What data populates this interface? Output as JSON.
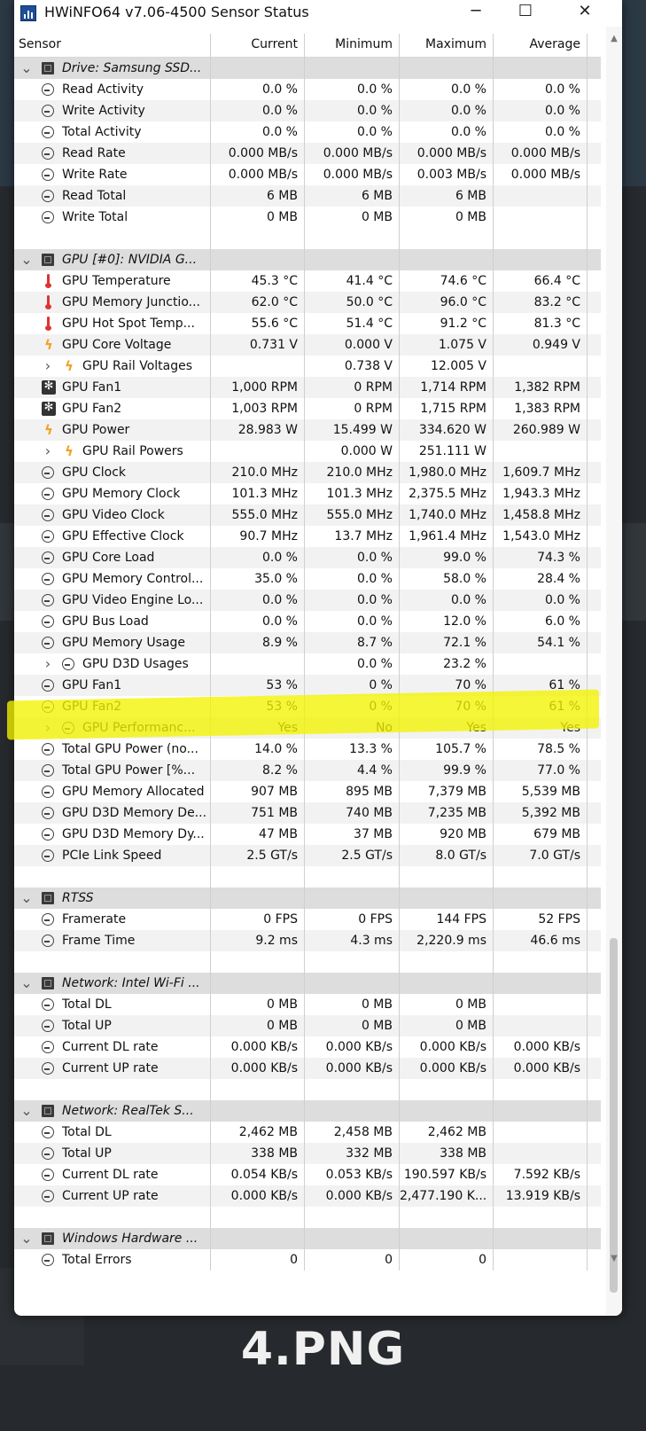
{
  "window": {
    "title": "HWiNFO64 v7.06-4500 Sensor Status",
    "minimize": "─",
    "maximize": "☐",
    "close": "✕"
  },
  "columns": {
    "sensor": "Sensor",
    "current": "Current",
    "minimum": "Minimum",
    "maximum": "Maximum",
    "average": "Average"
  },
  "rows": [
    {
      "type": "group",
      "icon": "drive-icon",
      "label": "Drive: Samsung SSD..."
    },
    {
      "type": "row",
      "icon": "clock",
      "label": "Read Activity",
      "cur": "0.0 %",
      "min": "0.0 %",
      "max": "0.0 %",
      "avg": "0.0 %"
    },
    {
      "type": "row",
      "icon": "clock",
      "label": "Write Activity",
      "cur": "0.0 %",
      "min": "0.0 %",
      "max": "0.0 %",
      "avg": "0.0 %"
    },
    {
      "type": "row",
      "icon": "clock",
      "label": "Total Activity",
      "cur": "0.0 %",
      "min": "0.0 %",
      "max": "0.0 %",
      "avg": "0.0 %"
    },
    {
      "type": "row",
      "icon": "clock",
      "label": "Read Rate",
      "cur": "0.000 MB/s",
      "min": "0.000 MB/s",
      "max": "0.000 MB/s",
      "avg": "0.000 MB/s"
    },
    {
      "type": "row",
      "icon": "clock",
      "label": "Write Rate",
      "cur": "0.000 MB/s",
      "min": "0.000 MB/s",
      "max": "0.003 MB/s",
      "avg": "0.000 MB/s"
    },
    {
      "type": "row",
      "icon": "clock",
      "label": "Read Total",
      "cur": "6 MB",
      "min": "6 MB",
      "max": "6 MB",
      "avg": ""
    },
    {
      "type": "row",
      "icon": "clock",
      "label": "Write Total",
      "cur": "0 MB",
      "min": "0 MB",
      "max": "0 MB",
      "avg": ""
    },
    {
      "type": "blank"
    },
    {
      "type": "group",
      "icon": "gpu-icon",
      "label": "GPU [#0]: NVIDIA G..."
    },
    {
      "type": "row",
      "icon": "therm",
      "label": "GPU Temperature",
      "cur": "45.3 °C",
      "min": "41.4 °C",
      "max": "74.6 °C",
      "avg": "66.4 °C"
    },
    {
      "type": "row",
      "icon": "therm",
      "label": "GPU Memory Junctio...",
      "cur": "62.0 °C",
      "min": "50.0 °C",
      "max": "96.0 °C",
      "avg": "83.2 °C"
    },
    {
      "type": "row",
      "icon": "therm",
      "label": "GPU Hot Spot Temp...",
      "cur": "55.6 °C",
      "min": "51.4 °C",
      "max": "91.2 °C",
      "avg": "81.3 °C"
    },
    {
      "type": "row",
      "icon": "bolt",
      "label": "GPU Core Voltage",
      "cur": "0.731 V",
      "min": "0.000 V",
      "max": "1.075 V",
      "avg": "0.949 V"
    },
    {
      "type": "sub",
      "icon": "bolt",
      "label": "GPU Rail Voltages",
      "cur": "",
      "min": "0.738 V",
      "max": "12.005 V",
      "avg": ""
    },
    {
      "type": "row",
      "icon": "fan",
      "label": "GPU Fan1",
      "cur": "1,000 RPM",
      "min": "0 RPM",
      "max": "1,714 RPM",
      "avg": "1,382 RPM"
    },
    {
      "type": "row",
      "icon": "fan",
      "label": "GPU Fan2",
      "cur": "1,003 RPM",
      "min": "0 RPM",
      "max": "1,715 RPM",
      "avg": "1,383 RPM"
    },
    {
      "type": "row",
      "icon": "bolt",
      "label": "GPU Power",
      "cur": "28.983 W",
      "min": "15.499 W",
      "max": "334.620 W",
      "avg": "260.989 W"
    },
    {
      "type": "sub",
      "icon": "bolt",
      "label": "GPU Rail Powers",
      "cur": "",
      "min": "0.000 W",
      "max": "251.111 W",
      "avg": ""
    },
    {
      "type": "row",
      "icon": "clock",
      "label": "GPU Clock",
      "cur": "210.0 MHz",
      "min": "210.0 MHz",
      "max": "1,980.0 MHz",
      "avg": "1,609.7 MHz"
    },
    {
      "type": "row",
      "icon": "clock",
      "label": "GPU Memory Clock",
      "cur": "101.3 MHz",
      "min": "101.3 MHz",
      "max": "2,375.5 MHz",
      "avg": "1,943.3 MHz"
    },
    {
      "type": "row",
      "icon": "clock",
      "label": "GPU Video Clock",
      "cur": "555.0 MHz",
      "min": "555.0 MHz",
      "max": "1,740.0 MHz",
      "avg": "1,458.8 MHz"
    },
    {
      "type": "row",
      "icon": "clock",
      "label": "GPU Effective Clock",
      "cur": "90.7 MHz",
      "min": "13.7 MHz",
      "max": "1,961.4 MHz",
      "avg": "1,543.0 MHz"
    },
    {
      "type": "row",
      "icon": "clock",
      "label": "GPU Core Load",
      "cur": "0.0 %",
      "min": "0.0 %",
      "max": "99.0 %",
      "avg": "74.3 %"
    },
    {
      "type": "row",
      "icon": "clock",
      "label": "GPU Memory Control...",
      "cur": "35.0 %",
      "min": "0.0 %",
      "max": "58.0 %",
      "avg": "28.4 %"
    },
    {
      "type": "row",
      "icon": "clock",
      "label": "GPU Video Engine Lo...",
      "cur": "0.0 %",
      "min": "0.0 %",
      "max": "0.0 %",
      "avg": "0.0 %"
    },
    {
      "type": "row",
      "icon": "clock",
      "label": "GPU Bus Load",
      "cur": "0.0 %",
      "min": "0.0 %",
      "max": "12.0 %",
      "avg": "6.0 %"
    },
    {
      "type": "row",
      "icon": "clock",
      "label": "GPU Memory Usage",
      "cur": "8.9 %",
      "min": "8.7 %",
      "max": "72.1 %",
      "avg": "54.1 %"
    },
    {
      "type": "sub",
      "icon": "clock",
      "label": "GPU D3D Usages",
      "cur": "",
      "min": "0.0 %",
      "max": "23.2 %",
      "avg": ""
    },
    {
      "type": "row",
      "icon": "clock",
      "label": "GPU Fan1",
      "cur": "53 %",
      "min": "0 %",
      "max": "70 %",
      "avg": "61 %"
    },
    {
      "type": "row",
      "icon": "clock",
      "label": "GPU Fan2",
      "cur": "53 %",
      "min": "0 %",
      "max": "70 %",
      "avg": "61 %"
    },
    {
      "type": "sub",
      "icon": "clock",
      "label": "GPU Performanc...",
      "cur": "Yes",
      "min": "No",
      "max": "Yes",
      "avg": "Yes"
    },
    {
      "type": "row",
      "icon": "clock",
      "label": "Total GPU Power (no...",
      "cur": "14.0 %",
      "min": "13.3 %",
      "max": "105.7 %",
      "avg": "78.5 %"
    },
    {
      "type": "row",
      "icon": "clock",
      "label": "Total GPU Power [%...",
      "cur": "8.2 %",
      "min": "4.4 %",
      "max": "99.9 %",
      "avg": "77.0 %"
    },
    {
      "type": "row",
      "icon": "clock",
      "label": "GPU Memory Allocated",
      "cur": "907 MB",
      "min": "895 MB",
      "max": "7,379 MB",
      "avg": "5,539 MB"
    },
    {
      "type": "row",
      "icon": "clock",
      "label": "GPU D3D Memory De...",
      "cur": "751 MB",
      "min": "740 MB",
      "max": "7,235 MB",
      "avg": "5,392 MB"
    },
    {
      "type": "row",
      "icon": "clock",
      "label": "GPU D3D Memory Dy...",
      "cur": "47 MB",
      "min": "37 MB",
      "max": "920 MB",
      "avg": "679 MB"
    },
    {
      "type": "row",
      "icon": "clock",
      "label": "PCIe Link Speed",
      "cur": "2.5 GT/s",
      "min": "2.5 GT/s",
      "max": "8.0 GT/s",
      "avg": "7.0 GT/s"
    },
    {
      "type": "blank"
    },
    {
      "type": "group",
      "icon": "chip-icon",
      "label": "RTSS"
    },
    {
      "type": "row",
      "icon": "clock",
      "label": "Framerate",
      "cur": "0 FPS",
      "min": "0 FPS",
      "max": "144 FPS",
      "avg": "52 FPS"
    },
    {
      "type": "row",
      "icon": "clock",
      "label": "Frame Time",
      "cur": "9.2 ms",
      "min": "4.3 ms",
      "max": "2,220.9 ms",
      "avg": "46.6 ms"
    },
    {
      "type": "blank"
    },
    {
      "type": "group",
      "icon": "network-icon",
      "label": "Network: Intel Wi-Fi ..."
    },
    {
      "type": "row",
      "icon": "clock",
      "label": "Total DL",
      "cur": "0 MB",
      "min": "0 MB",
      "max": "0 MB",
      "avg": ""
    },
    {
      "type": "row",
      "icon": "clock",
      "label": "Total UP",
      "cur": "0 MB",
      "min": "0 MB",
      "max": "0 MB",
      "avg": ""
    },
    {
      "type": "row",
      "icon": "clock",
      "label": "Current DL rate",
      "cur": "0.000 KB/s",
      "min": "0.000 KB/s",
      "max": "0.000 KB/s",
      "avg": "0.000 KB/s"
    },
    {
      "type": "row",
      "icon": "clock",
      "label": "Current UP rate",
      "cur": "0.000 KB/s",
      "min": "0.000 KB/s",
      "max": "0.000 KB/s",
      "avg": "0.000 KB/s"
    },
    {
      "type": "blank"
    },
    {
      "type": "group",
      "icon": "network-icon",
      "label": "Network: RealTek S..."
    },
    {
      "type": "row",
      "icon": "clock",
      "label": "Total DL",
      "cur": "2,462 MB",
      "min": "2,458 MB",
      "max": "2,462 MB",
      "avg": ""
    },
    {
      "type": "row",
      "icon": "clock",
      "label": "Total UP",
      "cur": "338 MB",
      "min": "332 MB",
      "max": "338 MB",
      "avg": ""
    },
    {
      "type": "row",
      "icon": "clock",
      "label": "Current DL rate",
      "cur": "0.054 KB/s",
      "min": "0.053 KB/s",
      "max": "190.597 KB/s",
      "avg": "7.592 KB/s"
    },
    {
      "type": "row",
      "icon": "clock",
      "label": "Current UP rate",
      "cur": "0.000 KB/s",
      "min": "0.000 KB/s",
      "max": "2,477.190 K...",
      "avg": "13.919 KB/s"
    },
    {
      "type": "blank"
    },
    {
      "type": "group",
      "icon": "chip-icon",
      "label": "Windows Hardware ..."
    },
    {
      "type": "row",
      "icon": "clock",
      "label": "Total Errors",
      "cur": "0",
      "min": "0",
      "max": "0",
      "avg": ""
    }
  ],
  "caption": "4.PNG",
  "colors": {
    "highlight": "#f4f400",
    "group_bg": "#dddddd",
    "alt_bg": "#f2f2f2"
  }
}
